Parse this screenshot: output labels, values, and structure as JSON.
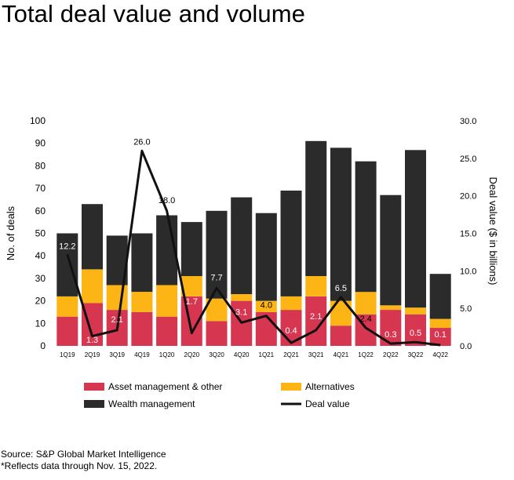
{
  "title": "Total deal value and volume",
  "chart_data": {
    "type": "bar",
    "stacked": true,
    "categories": [
      "1Q19",
      "2Q19",
      "3Q19",
      "4Q19",
      "1Q20",
      "2Q20",
      "3Q20",
      "4Q20",
      "1Q21",
      "2Q21",
      "3Q21",
      "4Q21",
      "1Q22",
      "2Q22",
      "3Q22",
      "4Q22"
    ],
    "series": [
      {
        "name": "Asset management & other",
        "type": "bar",
        "color": "#d6364f",
        "values": [
          13,
          19,
          16,
          15,
          13,
          22,
          11,
          20,
          15,
          16,
          22,
          9,
          14,
          16,
          14,
          8
        ]
      },
      {
        "name": "Alternatives",
        "type": "bar",
        "color": "#fdb515",
        "values": [
          9,
          15,
          11,
          9,
          14,
          9,
          10,
          3,
          5,
          6,
          9,
          11,
          10,
          2,
          3,
          4
        ]
      },
      {
        "name": "Wealth management",
        "type": "bar",
        "color": "#2b2b2b",
        "values": [
          28,
          29,
          22,
          26,
          31,
          24,
          39,
          43,
          39,
          47,
          60,
          68,
          58,
          49,
          70,
          20
        ]
      },
      {
        "name": "Deal value",
        "type": "line",
        "axis": "right",
        "color": "#111111",
        "values": [
          12.2,
          1.3,
          2.1,
          26.0,
          18.0,
          1.7,
          7.7,
          3.1,
          4.0,
          0.4,
          2.1,
          6.5,
          2.4,
          0.3,
          0.5,
          0.1
        ]
      }
    ],
    "data_labels": [
      "12.2",
      "1.3",
      "2.1",
      "26.0",
      "18.0",
      "1.7",
      "7.7",
      "3.1",
      "4.0",
      "0.4",
      "2.1",
      "6.5",
      "2.4",
      "0.3",
      "0.5",
      "0.1"
    ],
    "ylabel": "No. of deals",
    "y2label": "Deal value  ($ in billions)",
    "ylim": [
      0,
      100
    ],
    "y2lim": [
      0,
      30
    ],
    "yticks": [
      "0",
      "10",
      "20",
      "30",
      "40",
      "50",
      "60",
      "70",
      "80",
      "90",
      "100"
    ],
    "y2ticks": [
      "0.0",
      "5.0",
      "10.0",
      "15.0",
      "20.0",
      "25.0",
      "30.0"
    ],
    "grid": false,
    "legend_position": "bottom"
  },
  "footer": {
    "source": "Source: S&P Global Market Intelligence",
    "note": "*Reflects data through  Nov. 15, 2022."
  }
}
